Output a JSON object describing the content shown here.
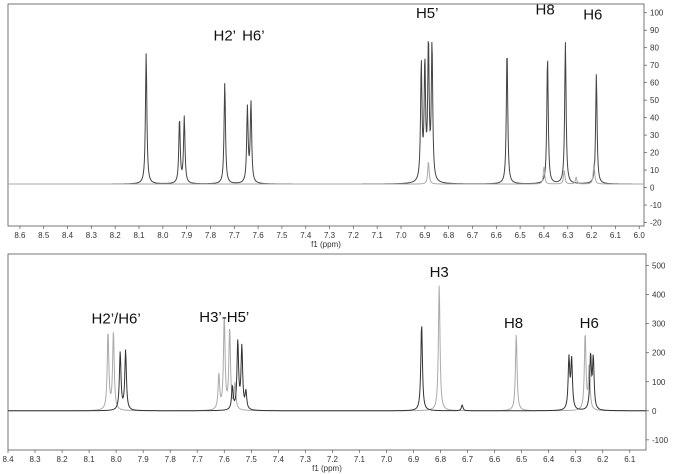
{
  "chart_data": [
    {
      "type": "line",
      "xlabel": "f1 (ppm)",
      "xlim": [
        8.65,
        5.98
      ],
      "ylim": [
        -22,
        105
      ],
      "x_ticks": [
        8.6,
        8.5,
        8.4,
        8.3,
        8.2,
        8.1,
        8.0,
        7.9,
        7.8,
        7.7,
        7.6,
        7.5,
        7.4,
        7.3,
        7.2,
        7.1,
        7.0,
        6.9,
        6.8,
        6.7,
        6.6,
        6.5,
        6.4,
        6.3,
        6.2,
        6.1,
        6.0
      ],
      "y_ticks": [
        -20,
        -10,
        0,
        10,
        20,
        30,
        40,
        50,
        60,
        70,
        80,
        90,
        100
      ],
      "baseline": 2,
      "annotations": [
        {
          "text": "H2’",
          "x": 7.74,
          "y": 84
        },
        {
          "text": "H6’",
          "x": 7.62,
          "y": 84
        },
        {
          "text": "H5’",
          "x": 6.89,
          "y": 97
        },
        {
          "text": "H8",
          "x": 6.395,
          "y": 99
        },
        {
          "text": "H6",
          "x": 6.195,
          "y": 96
        }
      ],
      "series": [
        {
          "color": "#444444",
          "peaks": [
            {
              "x": 8.07,
              "y": 77
            },
            {
              "x": 7.93,
              "y": 39
            },
            {
              "x": 7.91,
              "y": 40
            },
            {
              "x": 7.74,
              "y": 60
            },
            {
              "x": 7.645,
              "y": 45
            },
            {
              "x": 7.63,
              "y": 48
            },
            {
              "x": 6.915,
              "y": 69
            },
            {
              "x": 6.9,
              "y": 68
            },
            {
              "x": 6.885,
              "y": 80
            },
            {
              "x": 6.87,
              "y": 80
            },
            {
              "x": 6.555,
              "y": 79
            },
            {
              "x": 6.385,
              "y": 75
            },
            {
              "x": 6.31,
              "y": 83
            },
            {
              "x": 6.18,
              "y": 65
            }
          ]
        },
        {
          "color": "#aaaaaa",
          "peaks": [
            {
              "x": 6.885,
              "y": 15
            },
            {
              "x": 6.4,
              "y": 12
            },
            {
              "x": 6.315,
              "y": 10
            },
            {
              "x": 6.265,
              "y": 6
            },
            {
              "x": 6.19,
              "y": 14
            }
          ]
        }
      ]
    },
    {
      "type": "line",
      "xlabel": "f1 (ppm)",
      "xlim": [
        8.4,
        6.04
      ],
      "ylim": [
        -135,
        540
      ],
      "x_ticks": [
        8.4,
        8.3,
        8.2,
        8.1,
        8.0,
        7.9,
        7.8,
        7.7,
        7.6,
        7.5,
        7.4,
        7.3,
        7.2,
        7.1,
        7.0,
        6.9,
        6.8,
        6.7,
        6.6,
        6.5,
        6.4,
        6.3,
        6.2,
        6.1
      ],
      "y_ticks": [
        -100,
        0,
        100,
        200,
        300,
        400,
        500
      ],
      "baseline": 0,
      "annotations": [
        {
          "text": "H2’/H6’",
          "x": 8.0,
          "y": 300
        },
        {
          "text": "H3’-H5’",
          "x": 7.6,
          "y": 305
        },
        {
          "text": "H3",
          "x": 6.805,
          "y": 460
        },
        {
          "text": "H8",
          "x": 6.53,
          "y": 285
        },
        {
          "text": "H6",
          "x": 6.25,
          "y": 285
        }
      ],
      "series": [
        {
          "color": "#aaaaaa",
          "peaks": [
            {
              "x": 8.03,
              "y": 270
            },
            {
              "x": 8.01,
              "y": 270
            },
            {
              "x": 7.62,
              "y": 120
            },
            {
              "x": 7.6,
              "y": 320
            },
            {
              "x": 7.58,
              "y": 280
            },
            {
              "x": 7.56,
              "y": 90
            },
            {
              "x": 6.805,
              "y": 435
            },
            {
              "x": 6.52,
              "y": 265
            },
            {
              "x": 6.265,
              "y": 265
            },
            {
              "x": 6.25,
              "y": 150
            }
          ]
        },
        {
          "color": "#333333",
          "peaks": [
            {
              "x": 7.985,
              "y": 200
            },
            {
              "x": 7.965,
              "y": 205
            },
            {
              "x": 7.57,
              "y": 80
            },
            {
              "x": 7.55,
              "y": 235
            },
            {
              "x": 7.535,
              "y": 215
            },
            {
              "x": 7.52,
              "y": 60
            },
            {
              "x": 6.87,
              "y": 300
            },
            {
              "x": 6.72,
              "y": 20
            },
            {
              "x": 6.325,
              "y": 175
            },
            {
              "x": 6.315,
              "y": 170
            },
            {
              "x": 6.245,
              "y": 185
            },
            {
              "x": 6.235,
              "y": 175
            }
          ]
        }
      ]
    }
  ]
}
